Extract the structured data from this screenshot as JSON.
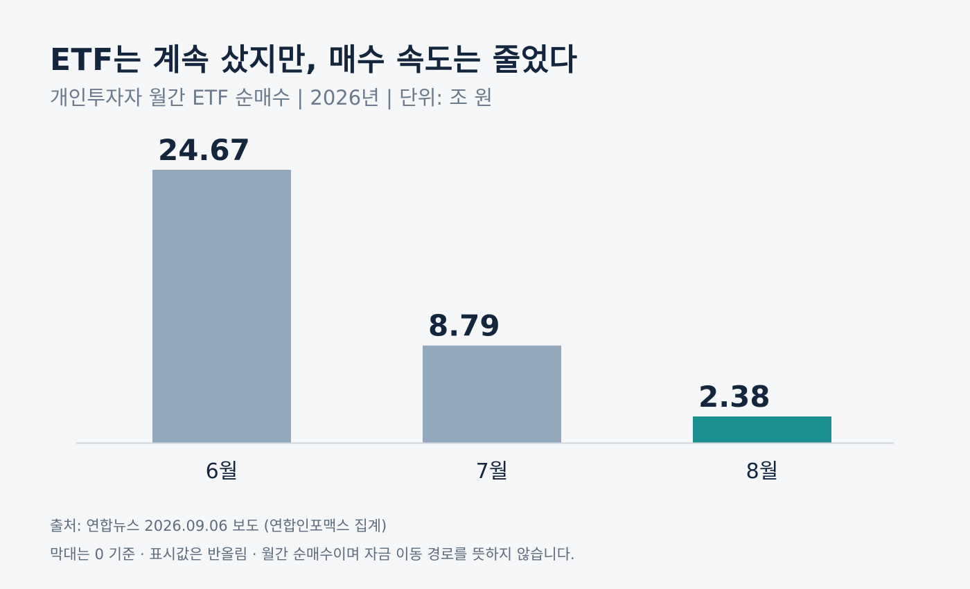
{
  "header": {
    "title": "ETF는 계속 샀지만, 매수 속도는 줄었다",
    "subtitle": "개인투자자 월간 ETF 순매수 | 2026년 | 단위: 조 원"
  },
  "footer": {
    "source": "출처: 연합뉴스 2026.09.06 보도 (연합인포맥스 집계)",
    "note": "막대는 0 기준 · 표시값은 반올림 · 월간 순매수이며 자금 이동 경로를 뜻하지 않습니다."
  },
  "colors": {
    "bar_default": "#93a8bb",
    "bar_highlight": "#1b8e8f",
    "label": "#13263e",
    "baseline": "#cfd6de"
  },
  "chart_data": {
    "type": "bar",
    "categories": [
      "6월",
      "7월",
      "8월"
    ],
    "values": [
      24.67,
      8.79,
      2.38
    ],
    "value_labels": [
      "24.67",
      "8.79",
      "2.38"
    ],
    "highlight_index": 2,
    "ylim": [
      0,
      24.67
    ],
    "grid": false,
    "legend": "none"
  }
}
